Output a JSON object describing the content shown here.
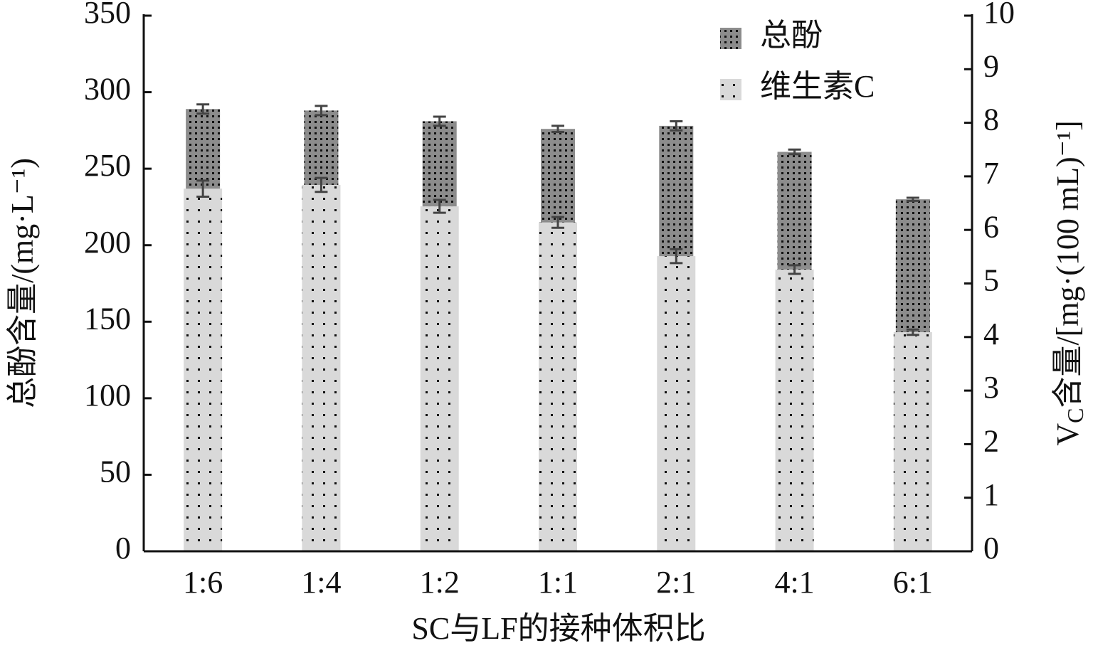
{
  "chart_data": {
    "type": "bar",
    "xlabel": "SC与LF的接种体积比",
    "ylabel": "总酚含量/(mg·L⁻¹)",
    "y2label": {
      "main": "V",
      "sub": "C",
      "rest": "含量/[mg·(100 mL)⁻¹]"
    },
    "categories": [
      "1:6",
      "1:4",
      "1:2",
      "1:1",
      "2:1",
      "4:1",
      "6:1"
    ],
    "series": [
      {
        "name": "总酚",
        "color": "#8c8c8c",
        "values": [
          289,
          288,
          281,
          276,
          278,
          261,
          230
        ],
        "errors": [
          3,
          3,
          3,
          2,
          3,
          1.5,
          1
        ]
      },
      {
        "name": "维生素C",
        "color": "#d9d9d9",
        "axis": "y2",
        "values": [
          6.77,
          6.84,
          6.44,
          6.14,
          5.51,
          5.26,
          4.09
        ],
        "errors": [
          0.15,
          0.13,
          0.12,
          0.1,
          0.13,
          0.08,
          0.05
        ]
      }
    ],
    "ylim": [
      0,
      350
    ],
    "yticks": [
      0,
      50,
      100,
      150,
      200,
      250,
      300,
      350
    ],
    "y2lim": [
      0,
      10
    ],
    "y2ticks": [
      0,
      1,
      2,
      3,
      4,
      5,
      6,
      7,
      8,
      9,
      10
    ],
    "legend": "upper right"
  }
}
